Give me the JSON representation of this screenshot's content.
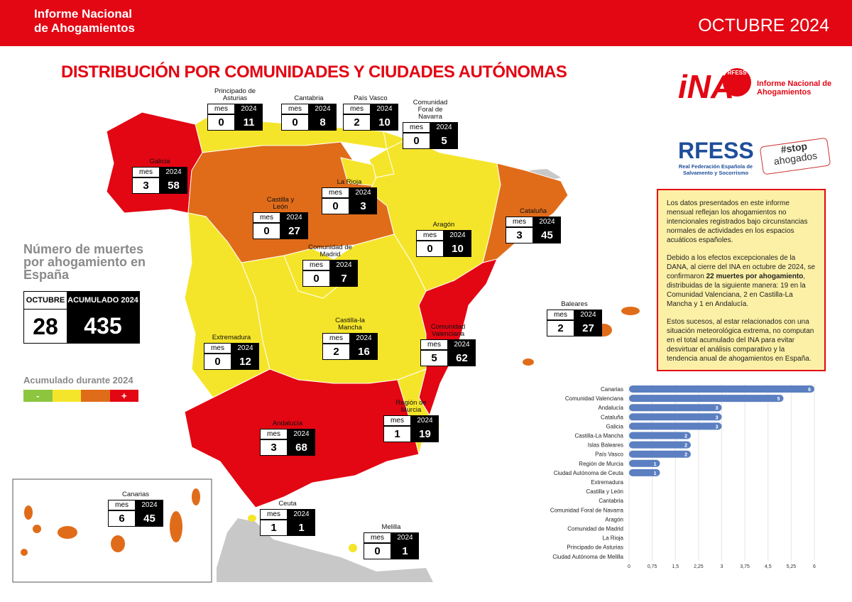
{
  "header": {
    "title": "Informe Nacional de Ahogamientos",
    "date": "OCTUBRE 2024"
  },
  "map": {
    "title": "DISTRIBUCIÓN POR COMUNIDADES Y CIUDADES AUTÓNOMAS",
    "month_header": "mes",
    "year_header": "2024",
    "regions": [
      {
        "name": "Principado de Asturias",
        "month": 0,
        "year": 11,
        "color": "#f5e52a"
      },
      {
        "name": "Cantabria",
        "month": 0,
        "year": 8,
        "color": "#f5e52a"
      },
      {
        "name": "País Vasco",
        "month": 2,
        "year": 10,
        "color": "#f5e52a"
      },
      {
        "name": "Comunidad Foral de Navarra",
        "month": 0,
        "year": 5,
        "color": "#f5e52a"
      },
      {
        "name": "Galicia",
        "month": 3,
        "year": 58,
        "color": "#e30613"
      },
      {
        "name": "La Rioja",
        "month": 0,
        "year": 3,
        "color": "#f5e52a"
      },
      {
        "name": "Castilla y León",
        "month": 0,
        "year": 27,
        "color": "#e06c1a"
      },
      {
        "name": "Aragón",
        "month": 0,
        "year": 10,
        "color": "#f5e52a"
      },
      {
        "name": "Cataluña",
        "month": 3,
        "year": 45,
        "color": "#e06c1a"
      },
      {
        "name": "Comunidad de Madrid",
        "month": 0,
        "year": 7,
        "color": "#f5e52a"
      },
      {
        "name": "Baleares",
        "month": 2,
        "year": 27,
        "color": "#e06c1a"
      },
      {
        "name": "Extremadura",
        "month": 0,
        "year": 12,
        "color": "#f5e52a"
      },
      {
        "name": "Castilla-la Mancha",
        "month": 2,
        "year": 16,
        "color": "#f5e52a"
      },
      {
        "name": "Comunidad Valenciana",
        "month": 5,
        "year": 62,
        "color": "#e30613"
      },
      {
        "name": "Región de Murcia",
        "month": 1,
        "year": 19,
        "color": "#f5e52a"
      },
      {
        "name": "Andalucía",
        "month": 3,
        "year": 68,
        "color": "#e30613"
      },
      {
        "name": "Canarias",
        "month": 6,
        "year": 45,
        "color": "#e06c1a"
      },
      {
        "name": "Ceuta",
        "month": 1,
        "year": 1,
        "color": "#f5e52a"
      },
      {
        "name": "Melilla",
        "month": 0,
        "year": 1,
        "color": "#f5e52a"
      }
    ]
  },
  "summary": {
    "title": "Número de muertes por ahogamiento en España",
    "month_header": "OCTUBRE",
    "year_header": "ACUMULADO 2024",
    "month": 28,
    "year": 435
  },
  "legend": {
    "title": "Acumulado durante 2024",
    "colors": [
      "#8cc63f",
      "#f5e52a",
      "#e06c1a",
      "#e30613"
    ],
    "low": "-",
    "high": "+"
  },
  "logos": {
    "ina": "iNA",
    "rfess_small": "RFESS",
    "ina_name": "Informe Nacional de Ahogamientos",
    "rfess": "RFESS",
    "rfess_name": "Real Federación Española de Salvamento y Socorrismo",
    "stop": "#stop",
    "ahogados": "ahogados"
  },
  "info": {
    "p1": "Los datos presentados en este informe mensual reflejan los ahogamientos no intencionales registrados bajo circunstancias normales de actividades en los espacios acuáticos españoles.",
    "p2_start": "Debido a los efectos excepcionales de la DANA, al cierre del INA en octubre de 2024, se confirmaron ",
    "p2_bold": "22 muertes por ahogamiento",
    "p2_end": ", distribuidas de la siguiente manera: 19 en la Comunidad Valenciana, 2 en Castilla-La Mancha y 1 en Andalucía.",
    "p3": "Estos sucesos, al estar relacionados con una situación meteorológica extrema, no computan en el total acumulado del INA para evitar desvirtuar el análisis comparativo y la tendencia anual de ahogamientos en España."
  },
  "chart_data": {
    "type": "bar",
    "orientation": "horizontal",
    "categories": [
      "Canarias",
      "Comunidad Valenciana",
      "Andalucía",
      "Cataluña",
      "Galicia",
      "Castilla-La Mancha",
      "Islas Baleares",
      "País Vasco",
      "Región de Murcia",
      "Ciudad Autónoma de Ceuta",
      "Extremadura",
      "Castilla y León",
      "Cantabria",
      "Comunidad Foral de Navarra",
      "Aragón",
      "Comunidad de Madrid",
      "La Rioja",
      "Principado de Asturias",
      "Ciudad Autónoma de Melilla"
    ],
    "values": [
      6,
      5,
      3,
      3,
      3,
      2,
      2,
      2,
      1,
      1,
      0,
      0,
      0,
      0,
      0,
      0,
      0,
      0,
      0
    ],
    "color": "#5b7fc0",
    "xlim": [
      0,
      6
    ],
    "xticks": [
      0,
      {
        "value": 0.75,
        "label": "0,75"
      },
      {
        "value": 1.5,
        "label": "1,5"
      },
      {
        "value": 2.25,
        "label": "2,25"
      },
      3,
      {
        "value": 3.75,
        "label": "3,75"
      },
      {
        "value": 4.5,
        "label": "4,5"
      },
      {
        "value": 5.25,
        "label": "5,25"
      },
      6
    ]
  }
}
